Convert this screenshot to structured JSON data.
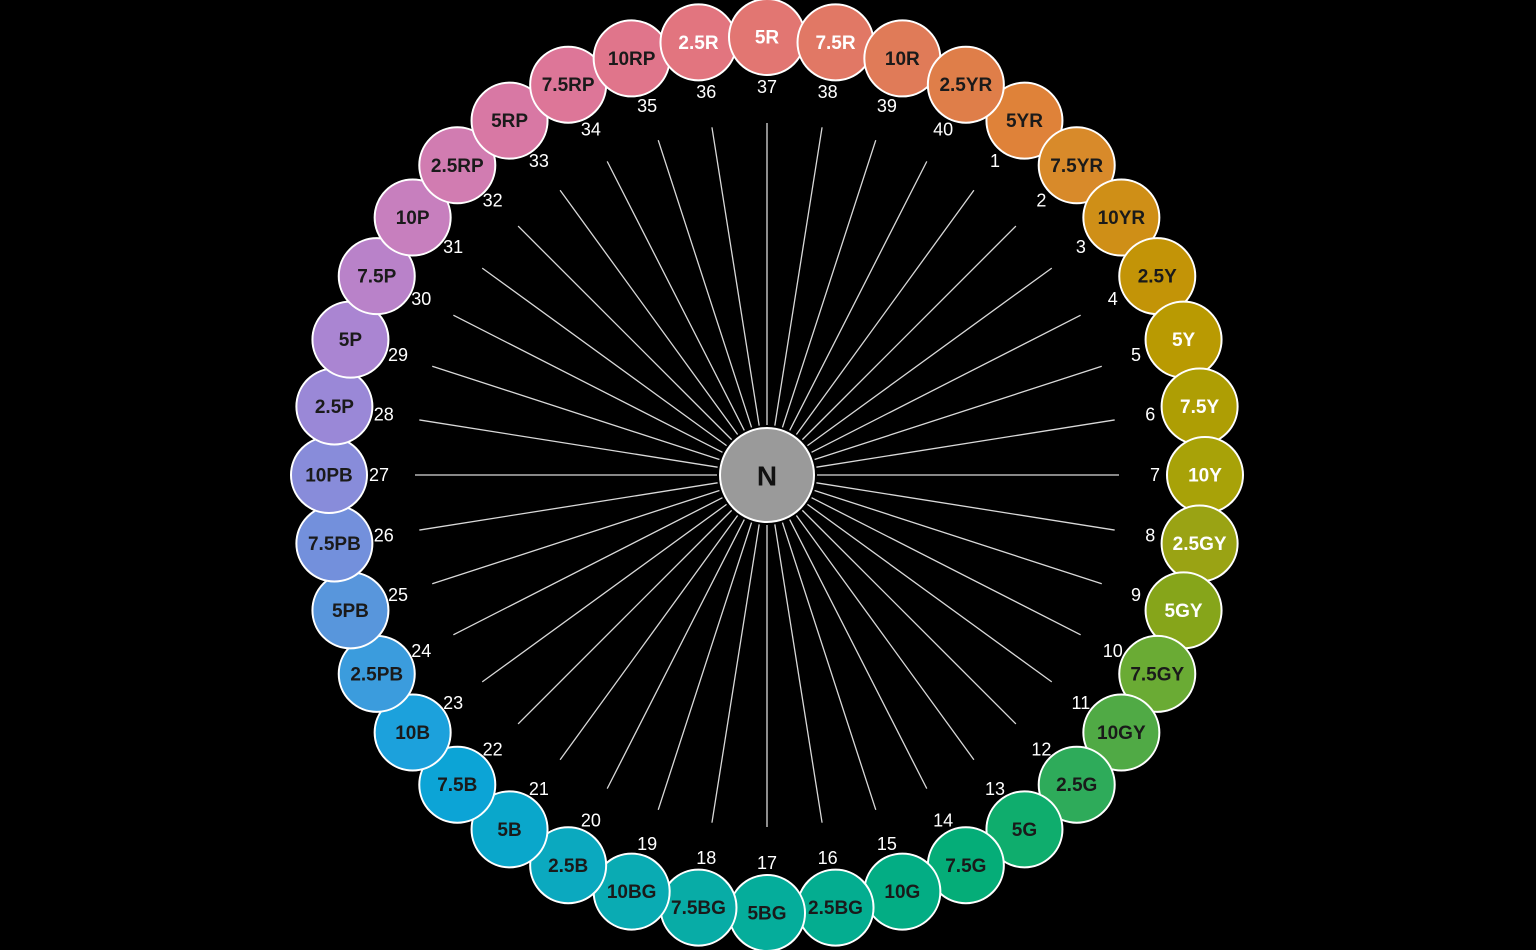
{
  "center": {
    "label": "N",
    "color": "#9a9a9a"
  },
  "hues": [
    {
      "number": "1",
      "label": "5YR",
      "color": "#df8239",
      "text": "#1a1a1a"
    },
    {
      "number": "2",
      "label": "7.5YR",
      "color": "#d88a2a",
      "text": "#1a1a1a"
    },
    {
      "number": "3",
      "label": "10YR",
      "color": "#cf8f17",
      "text": "#1a1a1a"
    },
    {
      "number": "4",
      "label": "2.5Y",
      "color": "#c39407",
      "text": "#1a1a1a"
    },
    {
      "number": "5",
      "label": "5Y",
      "color": "#b99a02",
      "text": "#ffffff"
    },
    {
      "number": "6",
      "label": "7.5Y",
      "color": "#ae9e04",
      "text": "#ffffff"
    },
    {
      "number": "7",
      "label": "10Y",
      "color": "#a8a208",
      "text": "#ffffff"
    },
    {
      "number": "8",
      "label": "2.5GY",
      "color": "#9aa314",
      "text": "#ffffff"
    },
    {
      "number": "9",
      "label": "5GY",
      "color": "#86a51a",
      "text": "#ffffff"
    },
    {
      "number": "10",
      "label": "7.5GY",
      "color": "#6aab34",
      "text": "#1a1a1a"
    },
    {
      "number": "11",
      "label": "10GY",
      "color": "#50aa45",
      "text": "#1a1a1a"
    },
    {
      "number": "12",
      "label": "2.5G",
      "color": "#2eab5a",
      "text": "#1a1a1a"
    },
    {
      "number": "13",
      "label": "5G",
      "color": "#0fad6d",
      "text": "#1a1a1a"
    },
    {
      "number": "14",
      "label": "7.5G",
      "color": "#05ad78",
      "text": "#1a1a1a"
    },
    {
      "number": "15",
      "label": "10G",
      "color": "#03ad84",
      "text": "#1a1a1a"
    },
    {
      "number": "16",
      "label": "2.5BG",
      "color": "#04ad90",
      "text": "#1a1a1a"
    },
    {
      "number": "17",
      "label": "5BG",
      "color": "#05ad9b",
      "text": "#1a1a1a"
    },
    {
      "number": "18",
      "label": "7.5BG",
      "color": "#08aca6",
      "text": "#1a1a1a"
    },
    {
      "number": "19",
      "label": "10BG",
      "color": "#0aabb3",
      "text": "#1a1a1a"
    },
    {
      "number": "20",
      "label": "2.5B",
      "color": "#0ba9bf",
      "text": "#1a1a1a"
    },
    {
      "number": "21",
      "label": "5B",
      "color": "#0aa7cb",
      "text": "#1a1a1a"
    },
    {
      "number": "22",
      "label": "7.5B",
      "color": "#0ca4d6",
      "text": "#1a1a1a"
    },
    {
      "number": "23",
      "label": "10B",
      "color": "#1ca1dc",
      "text": "#1a1a1a"
    },
    {
      "number": "24",
      "label": "2.5PB",
      "color": "#3b9cdd",
      "text": "#1a1a1a"
    },
    {
      "number": "25",
      "label": "5PB",
      "color": "#5896dc",
      "text": "#1a1a1a"
    },
    {
      "number": "26",
      "label": "7.5PB",
      "color": "#7390dc",
      "text": "#1a1a1a"
    },
    {
      "number": "27",
      "label": "10PB",
      "color": "#888cda",
      "text": "#1a1a1a"
    },
    {
      "number": "28",
      "label": "2.5P",
      "color": "#9a88d7",
      "text": "#1a1a1a"
    },
    {
      "number": "29",
      "label": "5P",
      "color": "#aa85d2",
      "text": "#1a1a1a"
    },
    {
      "number": "30",
      "label": "7.5P",
      "color": "#b982c9",
      "text": "#1a1a1a"
    },
    {
      "number": "31",
      "label": "10P",
      "color": "#c77fbe",
      "text": "#1a1a1a"
    },
    {
      "number": "32",
      "label": "2.5RP",
      "color": "#d17cb1",
      "text": "#1a1a1a"
    },
    {
      "number": "33",
      "label": "5RP",
      "color": "#d878a4",
      "text": "#1a1a1a"
    },
    {
      "number": "34",
      "label": "7.5RP",
      "color": "#dd7698",
      "text": "#1a1a1a"
    },
    {
      "number": "35",
      "label": "10RP",
      "color": "#e0758b",
      "text": "#1a1a1a"
    },
    {
      "number": "36",
      "label": "2.5R",
      "color": "#e2757f",
      "text": "#ffffff"
    },
    {
      "number": "37",
      "label": "5R",
      "color": "#e27672",
      "text": "#ffffff"
    },
    {
      "number": "38",
      "label": "7.5R",
      "color": "#e17865",
      "text": "#ffffff"
    },
    {
      "number": "39",
      "label": "10R",
      "color": "#e07b58",
      "text": "#1a1a1a"
    },
    {
      "number": "40",
      "label": "2.5YR",
      "color": "#df7e49",
      "text": "#1a1a1a"
    }
  ]
}
